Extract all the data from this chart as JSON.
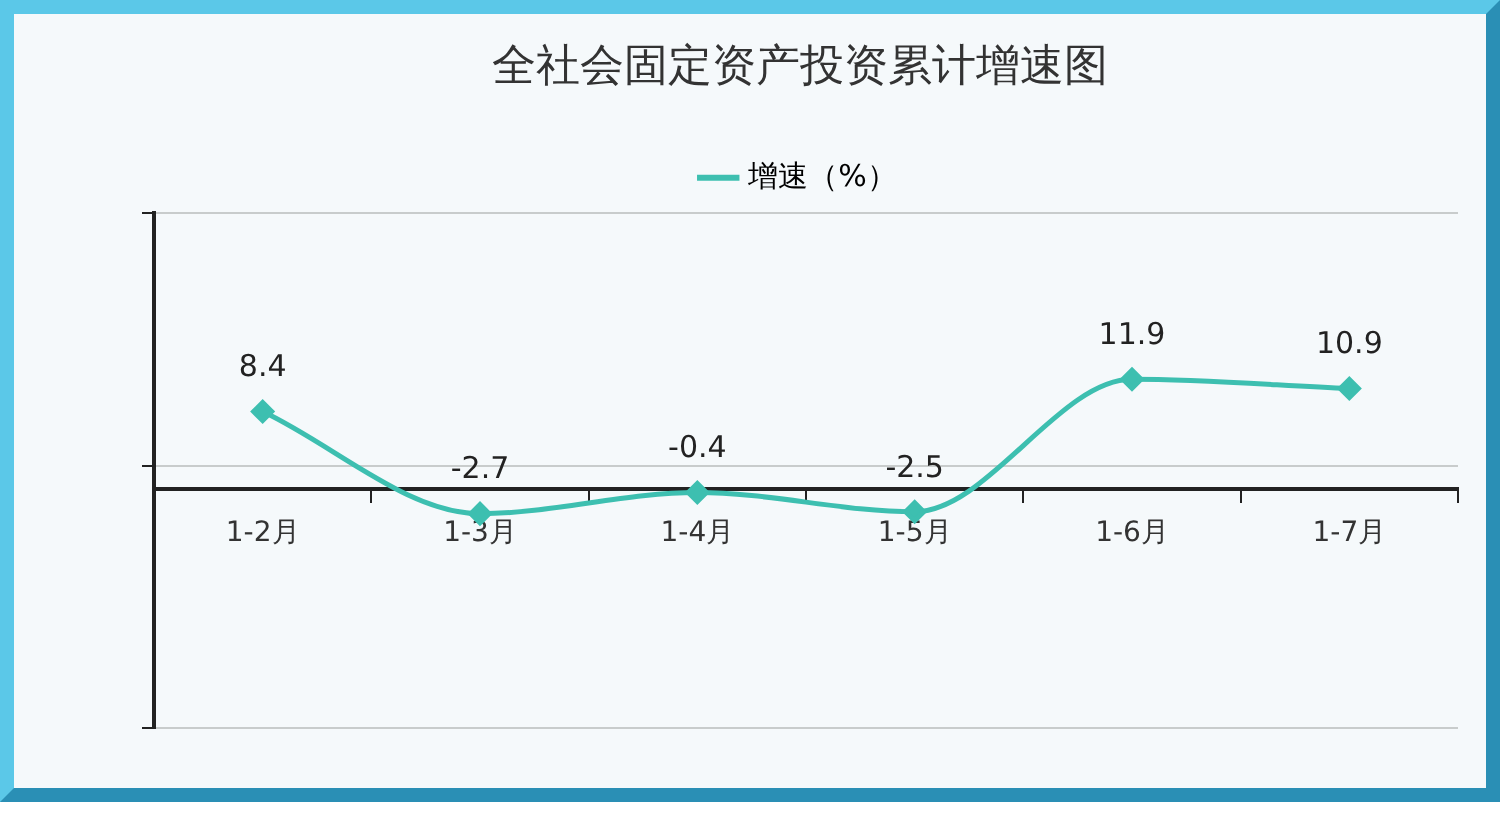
{
  "chart_data": {
    "type": "line",
    "title": "全社会固定资产投资累计增速图",
    "categories": [
      "1-2月",
      "1-3月",
      "1-4月",
      "1-5月",
      "1-6月",
      "1-7月"
    ],
    "series": [
      {
        "name": "增速（%）",
        "color": "#3dbfb0",
        "values": [
          8.4,
          -2.7,
          -0.4,
          -2.5,
          11.9,
          10.9
        ]
      }
    ],
    "ylim": [
      -26,
      30
    ],
    "yticks": [
      {
        "value": -26,
        "label": null
      },
      {
        "value": 2.5,
        "label": null
      },
      {
        "value": 30,
        "label": null
      }
    ],
    "data_labels": true,
    "legend": "top",
    "grid": "y",
    "marker": "diamond",
    "line_style": "solid",
    "tick_labels": "x"
  }
}
